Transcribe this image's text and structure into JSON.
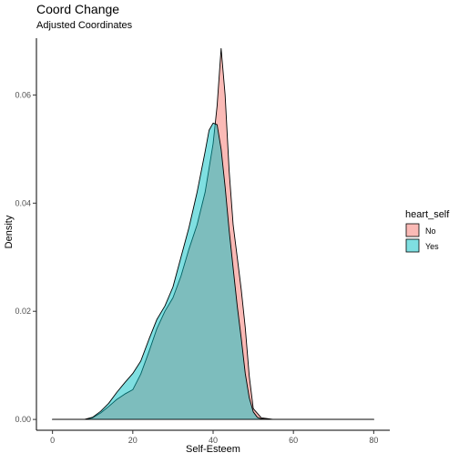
{
  "chart_data": {
    "type": "area",
    "title": "Coord Change",
    "subtitle": "Adjusted Coordinates",
    "xlabel": "Self-Esteem",
    "ylabel": "Density",
    "xlim": [
      -4,
      84
    ],
    "ylim": [
      -0.002,
      0.0705
    ],
    "xticks": [
      0,
      20,
      40,
      60,
      80
    ],
    "yticks": [
      0.0,
      0.02,
      0.04,
      0.06
    ],
    "ytick_labels": [
      "0.00",
      "0.02",
      "0.04",
      "0.06"
    ],
    "grid": false,
    "legend": {
      "title": "heart_self",
      "position": "right"
    },
    "series": [
      {
        "name": "No",
        "color": "#F8766D",
        "x": [
          0,
          8,
          10,
          12,
          14,
          16,
          18,
          20,
          22,
          24,
          26,
          28,
          30,
          32,
          34,
          36,
          38,
          40,
          41,
          42,
          43,
          44,
          45,
          46,
          47,
          48,
          49,
          50,
          52,
          55,
          60,
          80
        ],
        "y": [
          0,
          0,
          0.0003,
          0.0012,
          0.0024,
          0.0037,
          0.0047,
          0.0055,
          0.0084,
          0.0125,
          0.0168,
          0.02,
          0.0225,
          0.0265,
          0.0315,
          0.036,
          0.042,
          0.051,
          0.058,
          0.0686,
          0.06,
          0.046,
          0.036,
          0.03,
          0.024,
          0.017,
          0.008,
          0.002,
          0.0003,
          0,
          0,
          0
        ]
      },
      {
        "name": "Yes",
        "color": "#00BFC4",
        "x": [
          0,
          8,
          10,
          12,
          14,
          16,
          18,
          20,
          22,
          24,
          26,
          28,
          30,
          32,
          34,
          36,
          38,
          39,
          40,
          41,
          42,
          43,
          44,
          45,
          46,
          47,
          48,
          49,
          50,
          51,
          52,
          55,
          60,
          80
        ],
        "y": [
          0,
          0,
          0.0004,
          0.0015,
          0.003,
          0.005,
          0.0068,
          0.0085,
          0.0108,
          0.0148,
          0.0185,
          0.021,
          0.0245,
          0.03,
          0.0355,
          0.042,
          0.0495,
          0.0535,
          0.0548,
          0.0545,
          0.05,
          0.043,
          0.035,
          0.028,
          0.021,
          0.015,
          0.0085,
          0.004,
          0.0014,
          0.0004,
          0.0001,
          0,
          0,
          0
        ]
      }
    ]
  }
}
